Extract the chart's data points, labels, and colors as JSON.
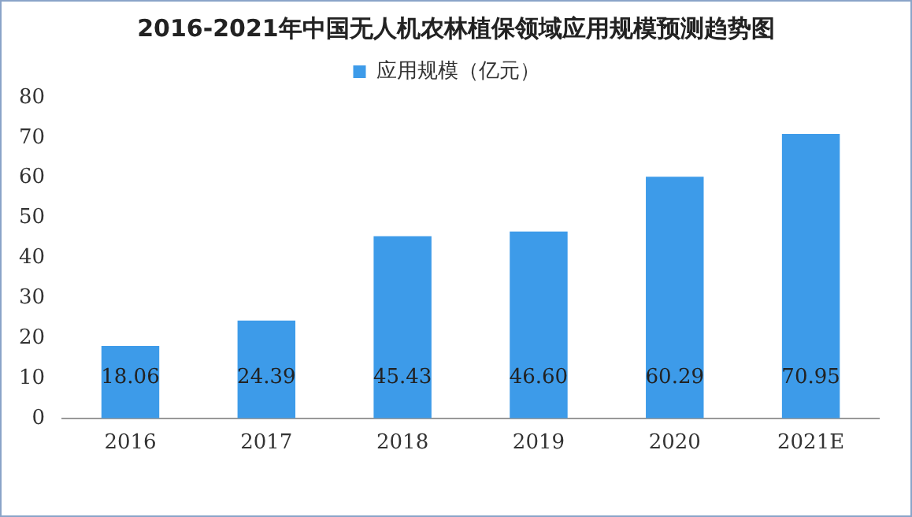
{
  "chart_data": {
    "type": "bar",
    "title": "2016-2021年中国无人机农林植保领域应用规模预测趋势图",
    "categories": [
      "2016",
      "2017",
      "2018",
      "2019",
      "2020",
      "2021E"
    ],
    "series": [
      {
        "name": "应用规模（亿元）",
        "color": "#3d9be9",
        "values": [
          18.06,
          24.39,
          45.43,
          46.6,
          60.29,
          70.95
        ],
        "value_labels": [
          "18.06",
          "24.39",
          "45.43",
          "46.60",
          "60.29",
          "70.95"
        ]
      }
    ],
    "ylim": [
      0,
      80
    ],
    "yticks": [
      0,
      10,
      20,
      30,
      40,
      50,
      60,
      70,
      80
    ],
    "grid": false,
    "legend": "top"
  }
}
